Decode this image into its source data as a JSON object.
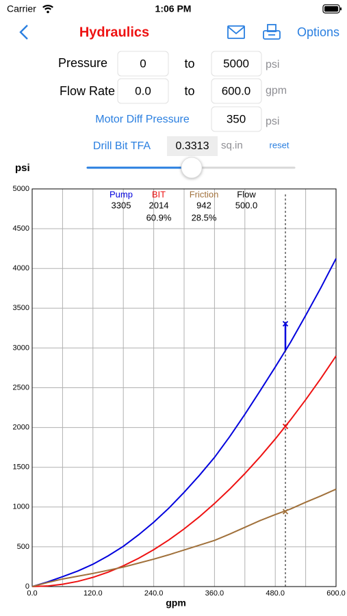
{
  "status": {
    "carrier": "Carrier",
    "time": "1:06 PM"
  },
  "nav": {
    "title": "Hydraulics",
    "options": "Options"
  },
  "form": {
    "pressure": {
      "label": "Pressure",
      "from": "0",
      "to_word": "to",
      "to": "5000",
      "unit": "psi"
    },
    "flow": {
      "label": "Flow Rate",
      "from": "0.0",
      "to_word": "to",
      "to": "600.0",
      "unit": "gpm"
    },
    "motor": {
      "label": "Motor Diff Pressure",
      "value": "350",
      "unit": "psi"
    },
    "tfa": {
      "label": "Drill Bit TFA",
      "value": "0.3313",
      "unit": "sq.in",
      "reset": "reset"
    }
  },
  "chart_data": {
    "type": "line",
    "ylabel": "psi",
    "xlabel": "gpm",
    "x": [
      0,
      30,
      60,
      90,
      120,
      150,
      180,
      210,
      240,
      270,
      300,
      330,
      360,
      390,
      420,
      450,
      480,
      510,
      540,
      570,
      600
    ],
    "series": [
      {
        "name": "Pump",
        "color": "#0000dd",
        "readout": 3305,
        "values": [
          0,
          57,
          124,
          195,
          281,
          386,
          506,
          650,
          809,
          987,
          1185,
          1397,
          1624,
          1885,
          2166,
          2461,
          2761,
          3070,
          3409,
          3757,
          4125
        ]
      },
      {
        "name": "BIT",
        "color": "#ee1111",
        "readout": 2014,
        "percent": 60.9,
        "percent_label": "60.9%",
        "values": [
          0,
          7,
          29,
          65,
          116,
          181,
          261,
          355,
          464,
          587,
          725,
          877,
          1044,
          1225,
          1421,
          1631,
          1856,
          2095,
          2349,
          2617,
          2900
        ]
      },
      {
        "name": "Friction",
        "color": "#a0703a",
        "readout": 942,
        "percent": 28.5,
        "percent_label": "28.5%",
        "values": [
          0,
          50,
          95,
          130,
          165,
          205,
          245,
          295,
          345,
          400,
          460,
          520,
          580,
          660,
          745,
          830,
          905,
          975,
          1060,
          1140,
          1225
        ]
      }
    ],
    "readout_name": "Flow",
    "readout_x": {
      "value": 500,
      "label": "500.0"
    },
    "xlim": [
      0,
      600
    ],
    "ylim": [
      0,
      5000
    ],
    "xticks": [
      {
        "value": 0,
        "label": "0.0"
      },
      {
        "value": 120,
        "label": "120.0"
      },
      {
        "value": 240,
        "label": "240.0"
      },
      {
        "value": 360,
        "label": "360.0"
      },
      {
        "value": 480,
        "label": "480.0"
      },
      {
        "value": 600,
        "label": "600.0"
      }
    ],
    "x_minor_ticks": [
      60,
      180,
      300,
      420,
      540
    ],
    "yticks": [
      0,
      500,
      1000,
      1500,
      2000,
      2500,
      3000,
      3500,
      4000,
      4500,
      5000
    ],
    "grid": true
  }
}
